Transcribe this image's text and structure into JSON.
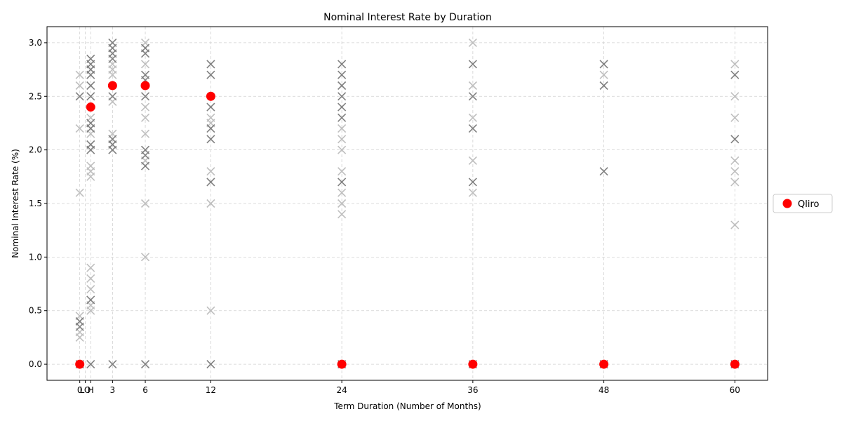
{
  "chart_data": {
    "type": "scatter",
    "title": "Nominal Interest Rate by Duration",
    "xlabel": "Term Duration (Number of Months)",
    "ylabel": "Nominal Interest Rate (%)",
    "ylim": [
      -0.15,
      3.15
    ],
    "xlim": [
      -3,
      63
    ],
    "grid": true,
    "legend_position": "right",
    "x_ticks": [
      {
        "value": 0,
        "label": "0"
      },
      {
        "value": 0.5,
        "label": "LO"
      },
      {
        "value": 1,
        "label": "H"
      },
      {
        "value": 3,
        "label": "3"
      },
      {
        "value": 6,
        "label": "6"
      },
      {
        "value": 12,
        "label": "12"
      },
      {
        "value": 24,
        "label": "24"
      },
      {
        "value": 36,
        "label": "36"
      },
      {
        "value": 48,
        "label": "48"
      },
      {
        "value": 60,
        "label": "60"
      }
    ],
    "y_ticks": [
      0.0,
      0.5,
      1.0,
      1.5,
      2.0,
      2.5,
      3.0
    ],
    "y_tick_labels": [
      "0.0",
      "0.5",
      "1.0",
      "1.5",
      "2.0",
      "2.5",
      "3.0"
    ],
    "colors": {
      "highlight": "#ff0000",
      "other_dark": "#808080",
      "other_light": "#bfbfbf",
      "grid": "#d0d0d0"
    },
    "series": [
      {
        "name": "",
        "marker": "x",
        "shade": "light",
        "points": [
          [
            0,
            2.7
          ],
          [
            0,
            2.6
          ],
          [
            0,
            2.2
          ],
          [
            0,
            1.6
          ],
          [
            0,
            0.45
          ],
          [
            0,
            0.3
          ],
          [
            0,
            0.25
          ],
          [
            1,
            2.3
          ],
          [
            1,
            2.15
          ],
          [
            1,
            1.85
          ],
          [
            1,
            1.8
          ],
          [
            1,
            1.75
          ],
          [
            1,
            0.9
          ],
          [
            1,
            0.8
          ],
          [
            1,
            0.7
          ],
          [
            1,
            0.55
          ],
          [
            1,
            0.5
          ],
          [
            3,
            2.8
          ],
          [
            3,
            2.75
          ],
          [
            3,
            2.7
          ],
          [
            3,
            2.45
          ],
          [
            3,
            2.15
          ],
          [
            6,
            3.0
          ],
          [
            6,
            2.8
          ],
          [
            6,
            2.4
          ],
          [
            6,
            2.3
          ],
          [
            6,
            2.15
          ],
          [
            6,
            1.9
          ],
          [
            6,
            1.5
          ],
          [
            6,
            1.0
          ],
          [
            12,
            2.3
          ],
          [
            12,
            2.25
          ],
          [
            12,
            1.8
          ],
          [
            12,
            1.5
          ],
          [
            12,
            0.5
          ],
          [
            24,
            2.2
          ],
          [
            24,
            2.1
          ],
          [
            24,
            2.0
          ],
          [
            24,
            1.8
          ],
          [
            24,
            1.6
          ],
          [
            24,
            1.5
          ],
          [
            24,
            1.4
          ],
          [
            36,
            3.0
          ],
          [
            36,
            2.3
          ],
          [
            36,
            1.9
          ],
          [
            36,
            1.6
          ],
          [
            36,
            2.6
          ],
          [
            48,
            2.7
          ],
          [
            60,
            2.8
          ],
          [
            60,
            2.5
          ],
          [
            60,
            2.3
          ],
          [
            60,
            1.9
          ],
          [
            60,
            1.8
          ],
          [
            60,
            1.7
          ],
          [
            60,
            1.3
          ]
        ]
      },
      {
        "name": "",
        "marker": "x",
        "shade": "dark",
        "points": [
          [
            0,
            2.5
          ],
          [
            0,
            0.4
          ],
          [
            0,
            0.35
          ],
          [
            0,
            0.0
          ],
          [
            1,
            2.85
          ],
          [
            1,
            2.8
          ],
          [
            1,
            2.75
          ],
          [
            1,
            2.7
          ],
          [
            1,
            2.6
          ],
          [
            1,
            2.5
          ],
          [
            1,
            2.25
          ],
          [
            1,
            2.2
          ],
          [
            1,
            2.05
          ],
          [
            1,
            2.0
          ],
          [
            1,
            0.6
          ],
          [
            1,
            0.0
          ],
          [
            3,
            3.0
          ],
          [
            3,
            2.95
          ],
          [
            3,
            2.9
          ],
          [
            3,
            2.85
          ],
          [
            3,
            2.5
          ],
          [
            3,
            2.1
          ],
          [
            3,
            2.05
          ],
          [
            3,
            2.0
          ],
          [
            3,
            0.0
          ],
          [
            6,
            2.95
          ],
          [
            6,
            2.9
          ],
          [
            6,
            2.7
          ],
          [
            6,
            2.65
          ],
          [
            6,
            2.5
          ],
          [
            6,
            2.0
          ],
          [
            6,
            1.95
          ],
          [
            6,
            1.85
          ],
          [
            6,
            0.0
          ],
          [
            12,
            2.8
          ],
          [
            12,
            2.7
          ],
          [
            12,
            2.4
          ],
          [
            12,
            2.2
          ],
          [
            12,
            2.1
          ],
          [
            12,
            1.7
          ],
          [
            12,
            0.0
          ],
          [
            24,
            2.8
          ],
          [
            24,
            2.7
          ],
          [
            24,
            2.6
          ],
          [
            24,
            2.5
          ],
          [
            24,
            2.4
          ],
          [
            24,
            2.3
          ],
          [
            24,
            1.7
          ],
          [
            24,
            0.0
          ],
          [
            36,
            2.8
          ],
          [
            36,
            2.5
          ],
          [
            36,
            2.2
          ],
          [
            36,
            1.7
          ],
          [
            36,
            0.0
          ],
          [
            48,
            2.8
          ],
          [
            48,
            2.6
          ],
          [
            48,
            1.8
          ],
          [
            48,
            0.0
          ],
          [
            60,
            2.7
          ],
          [
            60,
            2.1
          ],
          [
            60,
            0.0
          ]
        ]
      },
      {
        "name": "Qliro",
        "marker": "circle",
        "shade": "highlight",
        "points": [
          [
            0,
            0.0
          ],
          [
            1,
            2.4
          ],
          [
            3,
            2.6
          ],
          [
            6,
            2.6
          ],
          [
            12,
            2.5
          ],
          [
            24,
            0.0
          ],
          [
            36,
            0.0
          ],
          [
            48,
            0.0
          ],
          [
            60,
            0.0
          ]
        ]
      }
    ],
    "legend": [
      {
        "label": "Qliro",
        "color": "#ff0000",
        "marker": "circle"
      }
    ]
  }
}
